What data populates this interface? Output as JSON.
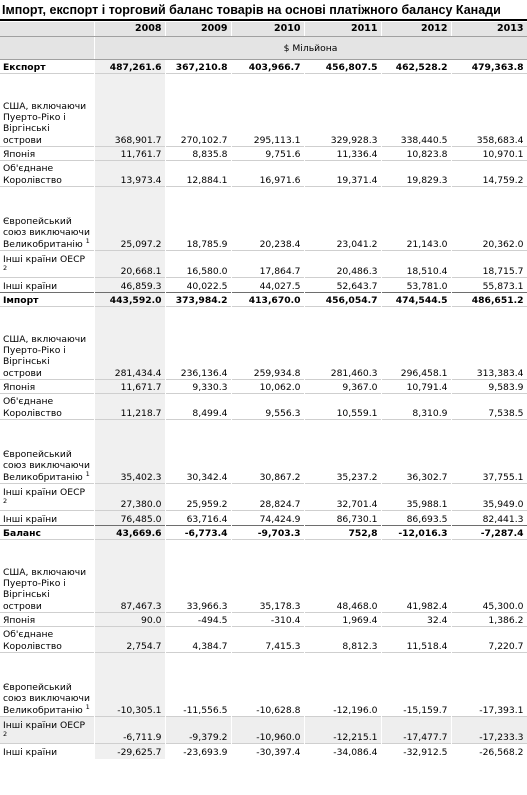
{
  "title": "Імпорт, експорт і торговий баланс товарів на основі платіжного балансу Канади",
  "unit": "$ Мільйона",
  "years": [
    "2008",
    "2009",
    "2010",
    "2011",
    "2012",
    "2013"
  ],
  "sections": [
    {
      "name": "Експорт",
      "values": [
        "487,261.6",
        "367,210.8",
        "403,966.7",
        "456,807.5",
        "462,528.2",
        "479,363.8"
      ],
      "rows": [
        {
          "label": "США, включаючи Пуерто-Ріко і Віргінські острови",
          "note": "",
          "values": [
            "368,901.7",
            "270,102.7",
            "295,113.1",
            "329,928.3",
            "338,440.5",
            "358,683.4"
          ]
        },
        {
          "label": "Японія",
          "note": "",
          "values": [
            "11,761.7",
            "8,835.8",
            "9,751.6",
            "11,336.4",
            "10,823.8",
            "10,970.1"
          ]
        },
        {
          "label": "Об'єднане Королівство",
          "note": "",
          "values": [
            "13,973.4",
            "12,884.1",
            "16,971.6",
            "19,371.4",
            "19,829.3",
            "14,759.2"
          ]
        },
        {
          "label": "Європейський союз виключаючи Великобританію",
          "note": "1",
          "values": [
            "25,097.2",
            "18,785.9",
            "20,238.4",
            "23,041.2",
            "21,143.0",
            "20,362.0"
          ]
        },
        {
          "label": "Інші країни ОЕСР",
          "note": "2",
          "values": [
            "20,668.1",
            "16,580.0",
            "17,864.7",
            "20,486.3",
            "18,510.4",
            "18,715.7"
          ]
        },
        {
          "label": "Інші країни",
          "note": "",
          "values": [
            "46,859.3",
            "40,022.5",
            "44,027.5",
            "52,643.7",
            "53,781.0",
            "55,873.1"
          ]
        }
      ]
    },
    {
      "name": "Імпорт",
      "values": [
        "443,592.0",
        "373,984.2",
        "413,670.0",
        "456,054.7",
        "474,544.5",
        "486,651.2"
      ],
      "rows": [
        {
          "label": "США, включаючи Пуерто-Ріко і Віргінські острови",
          "note": "",
          "values": [
            "281,434.4",
            "236,136.4",
            "259,934.8",
            "281,460.3",
            "296,458.1",
            "313,383.4"
          ]
        },
        {
          "label": "Японія",
          "note": "",
          "values": [
            "11,671.7",
            "9,330.3",
            "10,062.0",
            "9,367.0",
            "10,791.4",
            "9,583.9"
          ]
        },
        {
          "label": "Об'єднане Королівство",
          "note": "",
          "values": [
            "11,218.7",
            "8,499.4",
            "9,556.3",
            "10,559.1",
            "8,310.9",
            "7,538.5"
          ]
        },
        {
          "label": "Європейський союз виключаючи Великобританію",
          "note": "1",
          "values": [
            "35,402.3",
            "30,342.4",
            "30,867.2",
            "35,237.2",
            "36,302.7",
            "37,755.1"
          ]
        },
        {
          "label": "Інші країни ОЕСР",
          "note": "2",
          "values": [
            "27,380.0",
            "25,959.2",
            "28,824.7",
            "32,701.4",
            "35,988.1",
            "35,949.0"
          ]
        },
        {
          "label": "Інші країни",
          "note": "",
          "values": [
            "76,485.0",
            "63,716.4",
            "74,424.9",
            "86,730.1",
            "86,693.5",
            "82,441.3"
          ]
        }
      ]
    },
    {
      "name": "Баланс",
      "values": [
        "43,669.6",
        "-6,773.4",
        "-9,703.3",
        "752,8",
        "-12,016.3",
        "-7,287.4"
      ],
      "rows": [
        {
          "label": "США, включаючи Пуерто-Ріко і Віргінські острови",
          "note": "",
          "values": [
            "87,467.3",
            "33,966.3",
            "35,178.3",
            "48,468.0",
            "41,982.4",
            "45,300.0"
          ]
        },
        {
          "label": "Японія",
          "note": "",
          "values": [
            "90.0",
            "-494.5",
            "-310.4",
            "1,969.4",
            "32.4",
            "1,386.2"
          ]
        },
        {
          "label": "Об'єднане Королівство",
          "note": "",
          "values": [
            "2,754.7",
            "4,384.7",
            "7,415.3",
            "8,812.3",
            "11,518.4",
            "7,220.7"
          ]
        },
        {
          "label": "Європейський союз виключаючи Великобританію",
          "note": "1",
          "values": [
            "-10,305.1",
            "-11,556.5",
            "-10,628.8",
            "-12,196.0",
            "-15,159.7",
            "-17,393.1"
          ]
        },
        {
          "label": "Інші країни ОЕСР",
          "note": "2",
          "values": [
            "-6,711.9",
            "-9,379.2",
            "-10,960.0",
            "-12,215.1",
            "-17,477.7",
            "-17,233.3"
          ]
        },
        {
          "label": "Інші країни",
          "note": "",
          "values": [
            "-29,625.7",
            "-23,693.9",
            "-30,397.4",
            "-34,086.4",
            "-32,912.5",
            "-26,568.2"
          ]
        }
      ]
    }
  ]
}
